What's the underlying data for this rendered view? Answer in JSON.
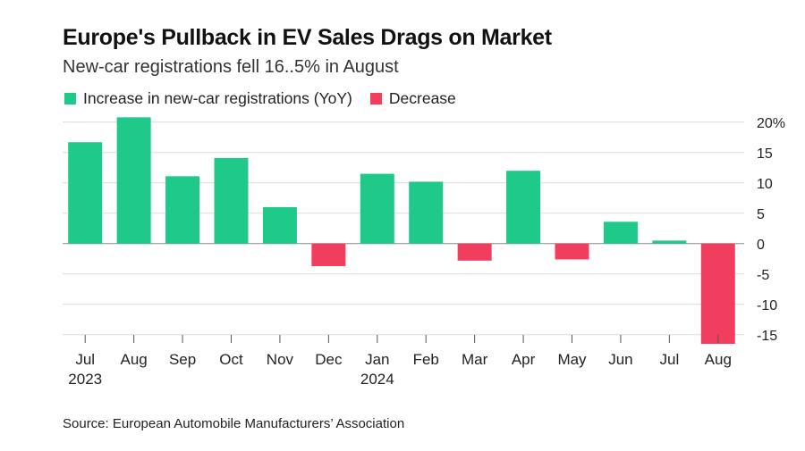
{
  "title": "Europe's Pullback in EV Sales Drags on Market",
  "subtitle": "New-car registrations fell 16..5% in August",
  "legend": {
    "increase_label": "Increase in new-car registrations (YoY)",
    "decrease_label": "Decrease"
  },
  "source": "Source: European Automobile Manufacturers’ Association",
  "colors": {
    "increase": "#1ec98a",
    "decrease": "#f23e5e",
    "grid": "#dcdcdc",
    "zero": "#888888"
  },
  "chart_data": {
    "type": "bar",
    "title": "Europe's Pullback in EV Sales Drags on Market",
    "subtitle": "New-car registrations fell 16..5% in August",
    "categories": [
      "Jul",
      "Aug",
      "Sep",
      "Oct",
      "Nov",
      "Dec",
      "Jan",
      "Feb",
      "Mar",
      "Apr",
      "May",
      "Jun",
      "Jul",
      "Aug"
    ],
    "year_labels": [
      "2023",
      "",
      "",
      "",
      "",
      "",
      "2024",
      "",
      "",
      "",
      "",
      "",
      "",
      ""
    ],
    "values": [
      16.7,
      20.8,
      11.1,
      14.1,
      6.0,
      -3.7,
      11.5,
      10.2,
      -2.8,
      12.0,
      -2.6,
      3.6,
      0.5,
      -16.5
    ],
    "ylim": [
      -16.5,
      21
    ],
    "yticks": [
      20,
      15,
      10,
      5,
      0,
      -5,
      -10,
      -15
    ],
    "ytick_labels": [
      "20%",
      "15",
      "10",
      "5",
      "0",
      "-5",
      "-10",
      "-15"
    ],
    "xlabel": "",
    "ylabel": "",
    "legend_position": "top-left",
    "grid": true
  }
}
